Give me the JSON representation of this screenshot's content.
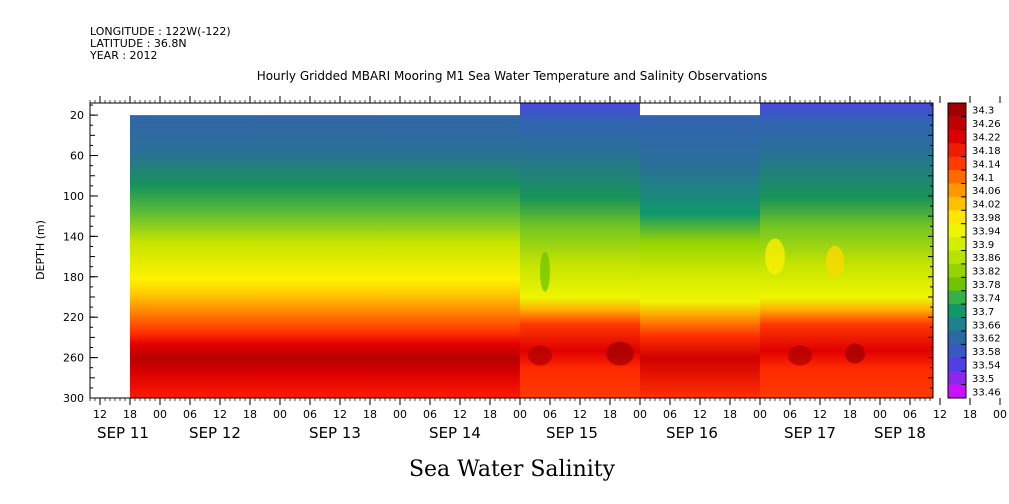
{
  "meta": {
    "longitude": "LONGITUDE : 122W(-122)",
    "latitude": "LATITUDE : 36.8N",
    "year": "YEAR : 2012"
  },
  "footer_title": "Sea Water Salinity",
  "chart_data": {
    "type": "heatmap",
    "title": "Hourly Gridded MBARI Mooring M1 Sea Water Temperature and Salinity Observations",
    "ylabel": "DEPTH (m)",
    "xlabel": "",
    "y_ticks": [
      20,
      60,
      100,
      140,
      180,
      220,
      260,
      300
    ],
    "ylim": [
      300,
      8
    ],
    "x_hour_labels": [
      "12",
      "18",
      "00",
      "06",
      "12",
      "18",
      "00",
      "06",
      "12",
      "18",
      "00",
      "06",
      "12",
      "18",
      "00",
      "06",
      "12",
      "18",
      "00",
      "06",
      "12",
      "18",
      "00",
      "06",
      "12",
      "18",
      "00",
      "06",
      "12",
      "18",
      "00",
      "06"
    ],
    "x_day_labels": [
      "SEP 11",
      "SEP 12",
      "SEP 13",
      "SEP 14",
      "SEP 15",
      "SEP 16",
      "SEP 17",
      "SEP 18"
    ],
    "xlim": [
      "SEP 11 12:00",
      "SEP 18 12:00"
    ],
    "data_start": "SEP 11 18:00",
    "colorbar_levels": [
      "34.3",
      "34.26",
      "34.22",
      "34.18",
      "34.14",
      "34.1",
      "34.06",
      "34.02",
      "33.98",
      "33.94",
      "33.9",
      "33.86",
      "33.82",
      "33.78",
      "33.74",
      "33.7",
      "33.66",
      "33.62",
      "33.58",
      "33.54",
      "33.5",
      "33.46"
    ],
    "colorbar_colors": [
      "#a00000",
      "#c00000",
      "#dc0000",
      "#ee1c00",
      "#ff3a00",
      "#ff6a00",
      "#ff9800",
      "#ffc000",
      "#ffe600",
      "#eef500",
      "#d2ef00",
      "#b6e300",
      "#96d400",
      "#6ec400",
      "#38b048",
      "#10986a",
      "#208090",
      "#2a6aa4",
      "#3a58c4",
      "#5040e4",
      "#8a28f0",
      "#cc10ff"
    ],
    "profile": [
      {
        "depth": 20,
        "salinity": 33.6
      },
      {
        "depth": 60,
        "salinity": 33.64
      },
      {
        "depth": 100,
        "salinity": 33.72
      },
      {
        "depth": 140,
        "salinity": 33.86
      },
      {
        "depth": 180,
        "salinity": 33.98
      },
      {
        "depth": 200,
        "salinity": 34.06
      },
      {
        "depth": 220,
        "salinity": 34.14
      },
      {
        "depth": 240,
        "salinity": 34.22
      },
      {
        "depth": 260,
        "salinity": 34.28
      },
      {
        "depth": 300,
        "salinity": 34.18
      }
    ]
  }
}
